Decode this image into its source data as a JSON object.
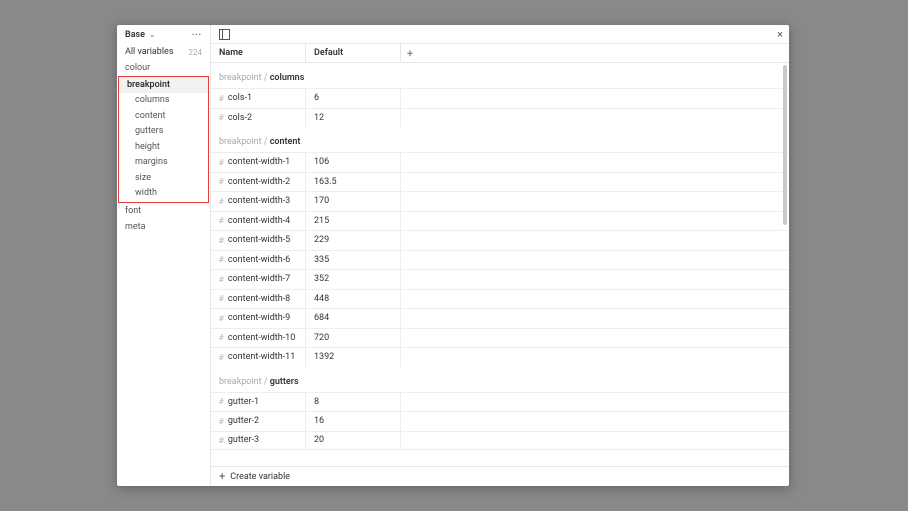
{
  "sidebar": {
    "collection": "Base",
    "allVariablesLabel": "All variables",
    "allVariablesCount": "224",
    "topItems": [
      "colour"
    ],
    "highlightParent": "breakpoint",
    "highlightChildren": [
      "columns",
      "content",
      "gutters",
      "height",
      "margins",
      "size",
      "width"
    ],
    "bottomItems": [
      "font",
      "meta"
    ]
  },
  "columns": {
    "name": "Name",
    "default": "Default"
  },
  "groups": [
    {
      "pathPrefix": "breakpoint / ",
      "pathName": "columns",
      "rows": [
        {
          "name": "cols-1",
          "value": "6"
        },
        {
          "name": "cols-2",
          "value": "12"
        }
      ]
    },
    {
      "pathPrefix": "breakpoint / ",
      "pathName": "content",
      "rows": [
        {
          "name": "content-width-1",
          "value": "106"
        },
        {
          "name": "content-width-2",
          "value": "163.5"
        },
        {
          "name": "content-width-3",
          "value": "170"
        },
        {
          "name": "content-width-4",
          "value": "215"
        },
        {
          "name": "content-width-5",
          "value": "229"
        },
        {
          "name": "content-width-6",
          "value": "335"
        },
        {
          "name": "content-width-7",
          "value": "352"
        },
        {
          "name": "content-width-8",
          "value": "448"
        },
        {
          "name": "content-width-9",
          "value": "684"
        },
        {
          "name": "content-width-10",
          "value": "720"
        },
        {
          "name": "content-width-11",
          "value": "1392"
        }
      ]
    },
    {
      "pathPrefix": "breakpoint / ",
      "pathName": "gutters",
      "rows": [
        {
          "name": "gutter-1",
          "value": "8"
        },
        {
          "name": "gutter-2",
          "value": "16"
        },
        {
          "name": "gutter-3",
          "value": "20"
        }
      ]
    }
  ],
  "footer": {
    "createLabel": "Create variable"
  }
}
